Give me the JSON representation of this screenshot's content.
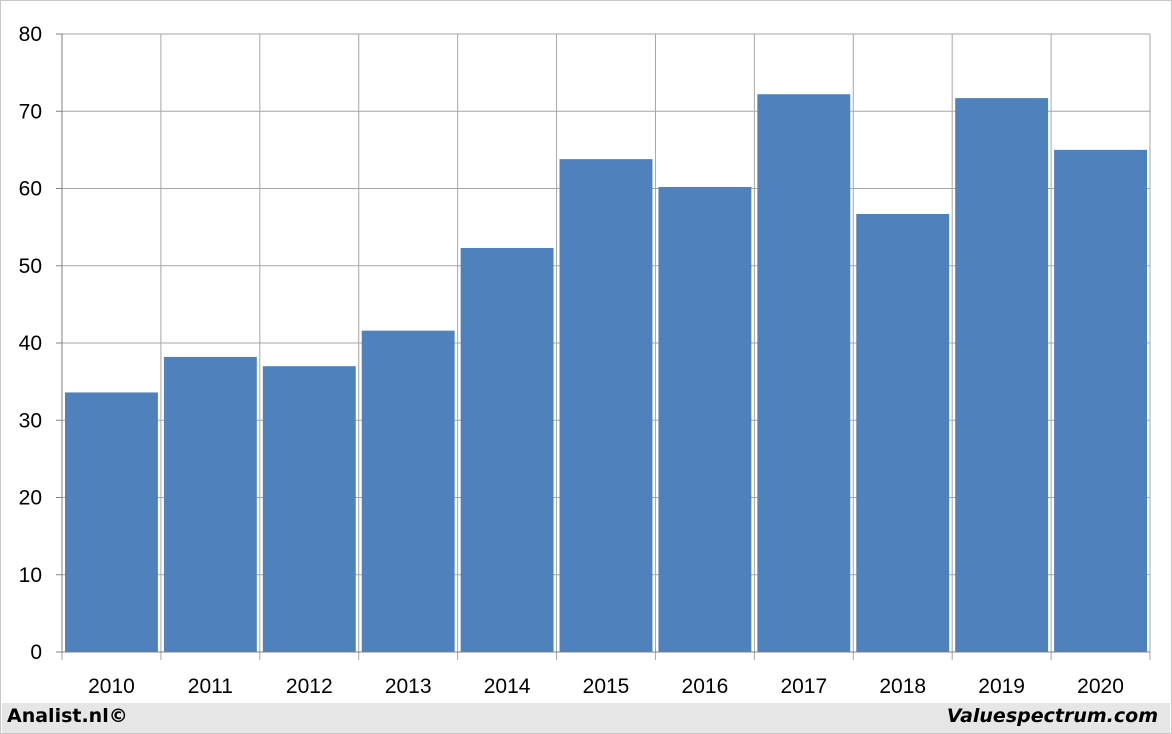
{
  "chart_data": {
    "type": "bar",
    "categories": [
      "2010",
      "2011",
      "2012",
      "2013",
      "2014",
      "2015",
      "2016",
      "2017",
      "2018",
      "2019",
      "2020"
    ],
    "values": [
      33.6,
      38.2,
      37.0,
      41.6,
      52.3,
      63.8,
      60.2,
      72.2,
      56.7,
      71.7,
      65.0
    ],
    "ylim": [
      0,
      80
    ],
    "yticks": [
      "0",
      "10",
      "20",
      "30",
      "40",
      "50",
      "60",
      "70",
      "80"
    ],
    "grid": true,
    "bar_color": "#4f81bd",
    "grid_color": "#a6a6a6"
  },
  "footer": {
    "left": "Analist.nl©",
    "right": "Valuespectrum.com"
  }
}
